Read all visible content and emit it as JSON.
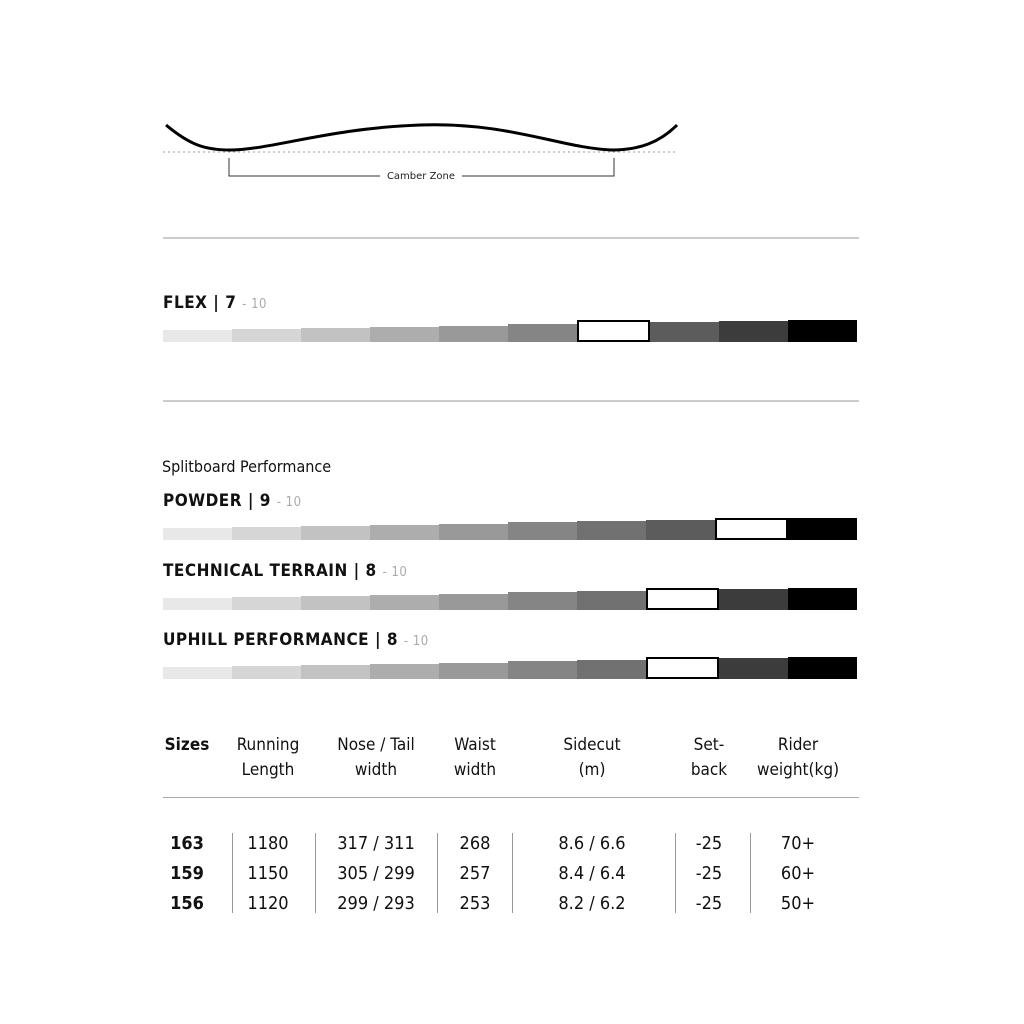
{
  "camber": {
    "label": "Camber Zone"
  },
  "flex": {
    "name": "FLEX",
    "value": 7,
    "max": 10
  },
  "splitboard": {
    "title": "Splitboard Performance",
    "ratings": [
      {
        "name": "POWDER",
        "value": 9,
        "max": 10
      },
      {
        "name": "TECHNICAL TERRAIN",
        "value": 8,
        "max": 10
      },
      {
        "name": "UPHILL PERFORMANCE",
        "value": 8,
        "max": 10
      }
    ]
  },
  "scale_colors": [
    "#e8e8e8",
    "#d6d6d6",
    "#c2c2c2",
    "#adadad",
    "#999999",
    "#858585",
    "#717171",
    "#5c5c5c",
    "#3c3c3c",
    "#000000"
  ],
  "table": {
    "headers": [
      [
        "Sizes",
        ""
      ],
      [
        "Running",
        "Length"
      ],
      [
        "Nose / Tail",
        "width"
      ],
      [
        "Waist",
        "width"
      ],
      [
        "Sidecut",
        "(m)"
      ],
      [
        "Set-",
        "back"
      ],
      [
        "Rider",
        "weight(kg)"
      ]
    ],
    "rows": [
      [
        "163",
        "1180",
        "317 / 311",
        "268",
        "8.6 / 6.6",
        "-25",
        "70+"
      ],
      [
        "159",
        "1150",
        "305 / 299",
        "257",
        "8.4 / 6.4",
        "-25",
        "60+"
      ],
      [
        "156",
        "1120",
        "299 / 293",
        "253",
        "8.2 / 6.2",
        "-25",
        "50+"
      ]
    ]
  }
}
